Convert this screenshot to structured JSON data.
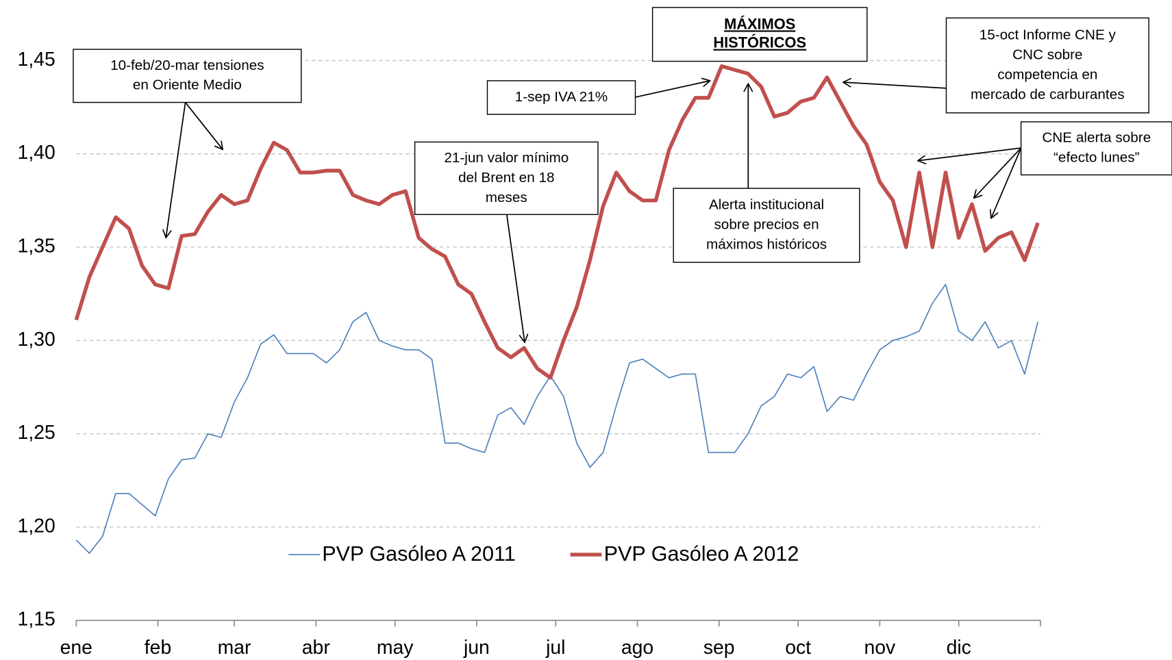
{
  "chart_data": {
    "type": "line",
    "x": [
      0,
      5,
      10,
      15,
      20,
      25,
      30,
      35,
      40,
      45,
      50,
      55,
      60,
      65,
      70,
      75,
      80,
      85,
      90,
      95,
      100,
      105,
      110,
      115,
      120,
      125,
      130,
      135,
      140,
      145,
      150,
      155,
      160,
      165,
      170,
      175,
      180,
      185,
      190,
      195,
      200,
      205,
      210,
      215,
      220,
      225,
      230,
      235,
      240,
      245,
      250,
      255,
      260,
      265,
      270,
      275,
      280,
      285,
      290,
      295,
      300,
      305,
      310,
      315,
      320,
      325,
      330,
      335,
      340,
      345,
      350,
      355,
      360,
      365
    ],
    "xlim": [
      0,
      366
    ],
    "xticks": [
      {
        "value": 0,
        "label": "ene"
      },
      {
        "value": 31,
        "label": "feb"
      },
      {
        "value": 60,
        "label": "mar"
      },
      {
        "value": 91,
        "label": "abr"
      },
      {
        "value": 121,
        "label": "may"
      },
      {
        "value": 152,
        "label": "jun"
      },
      {
        "value": 182,
        "label": "jul"
      },
      {
        "value": 213,
        "label": "ago"
      },
      {
        "value": 244,
        "label": "sep"
      },
      {
        "value": 274,
        "label": "oct"
      },
      {
        "value": 305,
        "label": "nov"
      },
      {
        "value": 335,
        "label": "dic"
      },
      {
        "value": 366,
        "label": null
      }
    ],
    "ylim": [
      1.15,
      1.45
    ],
    "yticks": [
      {
        "value": 1.15,
        "label": "1,15"
      },
      {
        "value": 1.2,
        "label": "1,20"
      },
      {
        "value": 1.25,
        "label": "1,25"
      },
      {
        "value": 1.3,
        "label": "1,30"
      },
      {
        "value": 1.35,
        "label": "1,35"
      },
      {
        "value": 1.4,
        "label": "1,40"
      },
      {
        "value": 1.45,
        "label": "1,45"
      }
    ],
    "grid": true,
    "series": [
      {
        "name": "PVP Gasóleo A 2011",
        "color": "#4a7ebb",
        "width": 1.5,
        "values": [
          1.193,
          1.186,
          1.195,
          1.218,
          1.218,
          1.212,
          1.206,
          1.226,
          1.236,
          1.237,
          1.25,
          1.248,
          1.267,
          1.28,
          1.298,
          1.303,
          1.293,
          1.293,
          1.293,
          1.288,
          1.295,
          1.31,
          1.315,
          1.3,
          1.297,
          1.295,
          1.295,
          1.29,
          1.245,
          1.245,
          1.242,
          1.24,
          1.26,
          1.264,
          1.255,
          1.27,
          1.281,
          1.27,
          1.245,
          1.232,
          1.24,
          1.265,
          1.288,
          1.29,
          1.285,
          1.28,
          1.282,
          1.282,
          1.24,
          1.24,
          1.24,
          1.25,
          1.265,
          1.27,
          1.282,
          1.28,
          1.286,
          1.262,
          1.27,
          1.268,
          1.282,
          1.295,
          1.3,
          1.302,
          1.305,
          1.32,
          1.33,
          1.305,
          1.3,
          1.31,
          1.296,
          1.3,
          1.282,
          1.31
        ]
      },
      {
        "name": "PVP Gasóleo A 2012",
        "color": "#c0504d",
        "width": 5,
        "values": [
          1.311,
          1.334,
          1.35,
          1.366,
          1.36,
          1.34,
          1.33,
          1.328,
          1.356,
          1.357,
          1.369,
          1.378,
          1.373,
          1.375,
          1.392,
          1.406,
          1.402,
          1.39,
          1.39,
          1.391,
          1.391,
          1.378,
          1.375,
          1.373,
          1.378,
          1.38,
          1.355,
          1.349,
          1.345,
          1.33,
          1.325,
          1.31,
          1.296,
          1.291,
          1.296,
          1.285,
          1.28,
          1.3,
          1.318,
          1.343,
          1.372,
          1.39,
          1.38,
          1.375,
          1.375,
          1.402,
          1.418,
          1.43,
          1.43,
          1.447,
          1.445,
          1.443,
          1.436,
          1.42,
          1.422,
          1.428,
          1.43,
          1.441,
          1.428,
          1.415,
          1.405,
          1.385,
          1.375,
          1.35,
          1.39,
          1.35,
          1.39,
          1.355,
          1.373,
          1.348,
          1.355,
          1.358,
          1.343,
          1.363
        ]
      }
    ],
    "annotations": [
      {
        "lines": [
          "10-feb/20-mar  tensiones",
          "en Oriente Medio"
        ]
      },
      {
        "lines": [
          "1-sep IVA 21%"
        ]
      },
      {
        "lines": [
          "MÁXIMOS",
          "HISTÓRICOS"
        ],
        "bold": true
      },
      {
        "lines": [
          "15-oct Informe CNE y",
          "CNC sobre",
          "competencia en",
          "mercado de carburantes"
        ]
      },
      {
        "lines": [
          "CNE alerta sobre",
          "“efecto lunes”"
        ]
      },
      {
        "lines": [
          "21-jun valor mínimo",
          "del Brent en 18",
          "meses"
        ]
      },
      {
        "lines": [
          "Alerta institucional",
          "sobre precios en",
          "máximos históricos"
        ]
      }
    ]
  }
}
